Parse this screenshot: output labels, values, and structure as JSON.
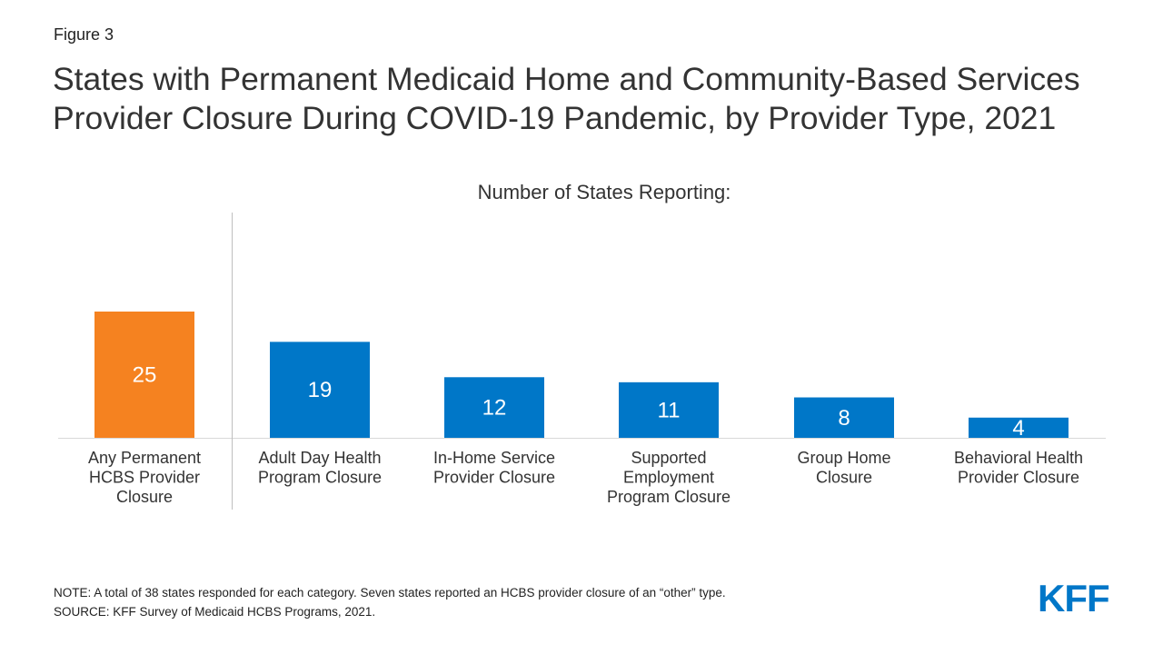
{
  "figure_label": "Figure 3",
  "title_line1": "States with Permanent Medicaid Home and Community-Based Services",
  "title_line2": "Provider Closure During COVID-19 Pandemic, by Provider Type, 2021",
  "note": "NOTE: A total of 38 states responded for each category. Seven states reported an HCBS provider closure of an “other” type.",
  "source": "SOURCE: KFF Survey of Medicaid HCBS Programs, 2021.",
  "logo_text": "KFF",
  "colors": {
    "highlight": "#f58220",
    "primary": "#0077c8",
    "label_on_bar": "#ffffff"
  },
  "chart_data": {
    "type": "bar",
    "title": "Number of States Reporting:",
    "categories": [
      [
        "Any Permanent",
        "HCBS Provider",
        "Closure"
      ],
      [
        "Adult Day Health",
        "Program Closure"
      ],
      [
        "In-Home Service",
        "Provider Closure"
      ],
      [
        "Supported",
        "Employment",
        "Program Closure"
      ],
      [
        "Group Home",
        "Closure"
      ],
      [
        "Behavioral Health",
        "Provider Closure"
      ]
    ],
    "values": [
      25,
      19,
      12,
      11,
      8,
      4
    ],
    "highlight_index": 0,
    "ylim": [
      0,
      25
    ],
    "grid": false,
    "xlabel": "",
    "ylabel": ""
  }
}
